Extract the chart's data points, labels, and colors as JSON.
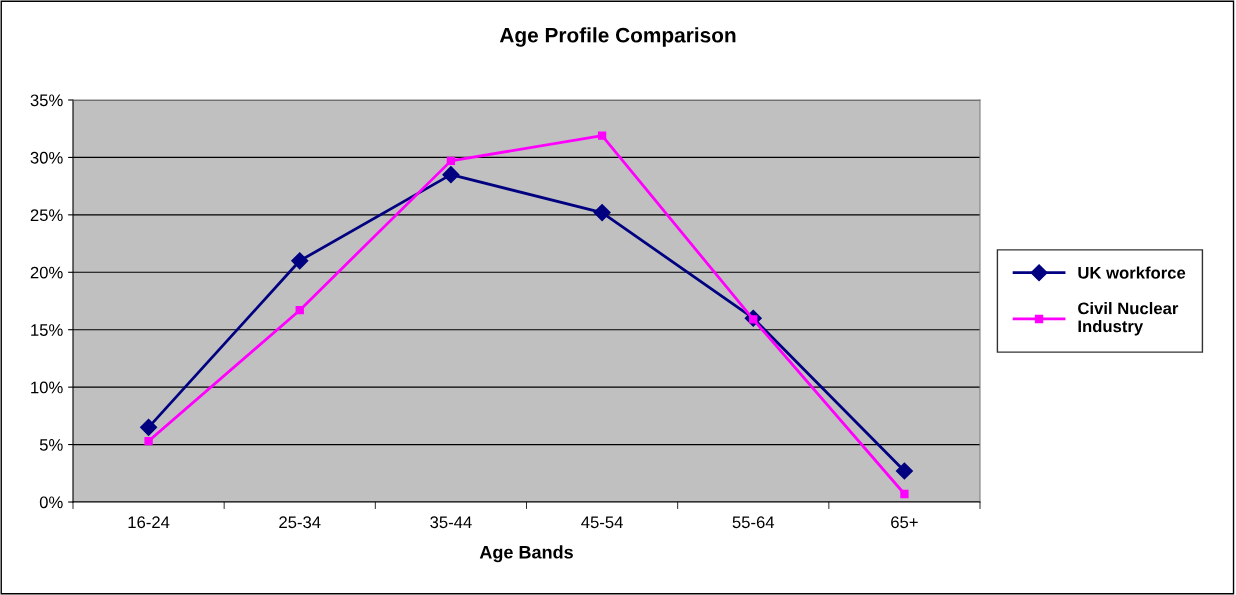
{
  "chart_data": {
    "type": "line",
    "title": "Age Profile Comparison",
    "xlabel": "Age Bands",
    "categories": [
      "16-24",
      "25-34",
      "35-44",
      "45-54",
      "55-64",
      "65+"
    ],
    "series": [
      {
        "name": "UK workforce",
        "color": "#000080",
        "marker": "diamond",
        "values": [
          6.5,
          21.0,
          28.5,
          25.2,
          16.0,
          2.7
        ]
      },
      {
        "name": "Civil Nuclear Industry",
        "color": "#ff00ff",
        "marker": "square",
        "values": [
          5.3,
          16.7,
          29.7,
          31.9,
          15.9,
          0.7
        ]
      }
    ],
    "ylim": [
      0,
      35
    ],
    "yticks": [
      {
        "value": 0,
        "label": "0%"
      },
      {
        "value": 5,
        "label": "5%"
      },
      {
        "value": 10,
        "label": "10%"
      },
      {
        "value": 15,
        "label": "15%"
      },
      {
        "value": 20,
        "label": "20%"
      },
      {
        "value": 25,
        "label": "25%"
      },
      {
        "value": 30,
        "label": "30%"
      },
      {
        "value": 35,
        "label": "35%"
      }
    ],
    "grid": "y",
    "legend": "right",
    "line_style": "solid"
  }
}
